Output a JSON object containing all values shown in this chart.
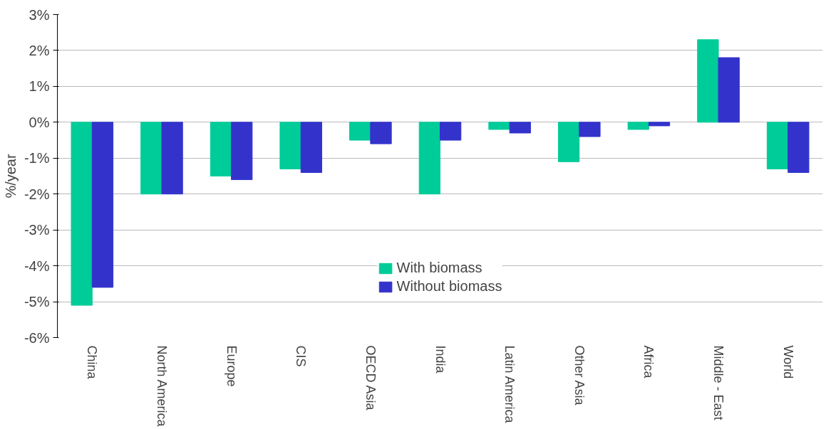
{
  "chart_data": {
    "type": "bar",
    "ylabel": "%/year",
    "categories": [
      "China",
      "North America",
      "Europe",
      "CIS",
      "OECD Asia",
      "India",
      "Latin America",
      "Other Asia",
      "Africa",
      "Middle - East",
      "World"
    ],
    "series": [
      {
        "name": "With biomass",
        "color": "#00cc99",
        "values": [
          -5.1,
          -2.0,
          -1.5,
          -1.3,
          -0.5,
          -2.0,
          -0.2,
          -1.1,
          -0.2,
          2.3,
          -1.3
        ]
      },
      {
        "name": "Without biomass",
        "color": "#3333cc",
        "values": [
          -4.6,
          -2.0,
          -1.6,
          -1.4,
          -0.6,
          -0.5,
          -0.3,
          -0.4,
          -0.1,
          1.8,
          -1.4
        ]
      }
    ],
    "ylim": [
      -6,
      3
    ],
    "yticks": [
      {
        "value": 3,
        "label": "3%"
      },
      {
        "value": 2,
        "label": "2%"
      },
      {
        "value": 1,
        "label": "1%"
      },
      {
        "value": 0,
        "label": "0%"
      },
      {
        "value": -1,
        "label": "-1%"
      },
      {
        "value": -2,
        "label": "-2%"
      },
      {
        "value": -3,
        "label": "-3%"
      },
      {
        "value": -4,
        "label": "-4%"
      },
      {
        "value": -5,
        "label": "-5%"
      },
      {
        "value": -6,
        "label": "-6%"
      }
    ],
    "grid": "y",
    "legend": "bottom"
  }
}
